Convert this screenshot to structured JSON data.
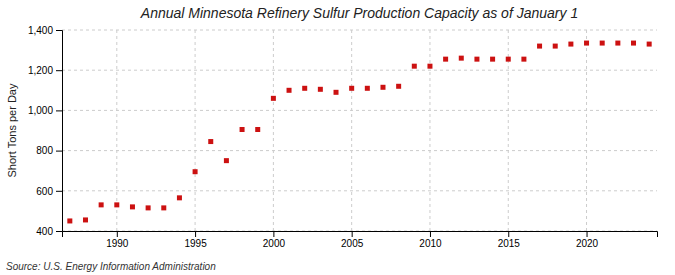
{
  "chart_data": {
    "type": "scatter",
    "title": "Annual Minnesota Refinery Sulfur Production Capacity as of January 1",
    "ylabel": "Short Tons per Day",
    "source": "Source: U.S. Energy Information Administration",
    "x": [
      1987,
      1988,
      1989,
      1990,
      1991,
      1992,
      1993,
      1994,
      1995,
      1996,
      1997,
      1998,
      1999,
      2000,
      2001,
      2002,
      2003,
      2004,
      2005,
      2006,
      2007,
      2008,
      2009,
      2010,
      2011,
      2012,
      2013,
      2014,
      2015,
      2016,
      2017,
      2018,
      2019,
      2020,
      2021,
      2022,
      2023,
      2024
    ],
    "values": [
      450,
      455,
      530,
      530,
      520,
      515,
      515,
      565,
      695,
      845,
      750,
      905,
      905,
      1060,
      1100,
      1110,
      1105,
      1090,
      1110,
      1110,
      1115,
      1120,
      1220,
      1220,
      1255,
      1260,
      1255,
      1255,
      1255,
      1255,
      1320,
      1320,
      1330,
      1335,
      1335,
      1335,
      1335,
      1330
    ],
    "color": "#cc1111",
    "marker": "square",
    "xlim": [
      1986.5,
      2024.5
    ],
    "xticks": [
      1990,
      1995,
      2000,
      2005,
      2010,
      2015,
      2020
    ],
    "ylim": [
      400,
      1400
    ],
    "yticks": [
      400,
      600,
      800,
      {
        "value": 1000,
        "label": "1,000"
      },
      {
        "value": 1200,
        "label": "1,200"
      },
      {
        "value": 1400,
        "label": "1,400"
      }
    ],
    "grid": true
  }
}
